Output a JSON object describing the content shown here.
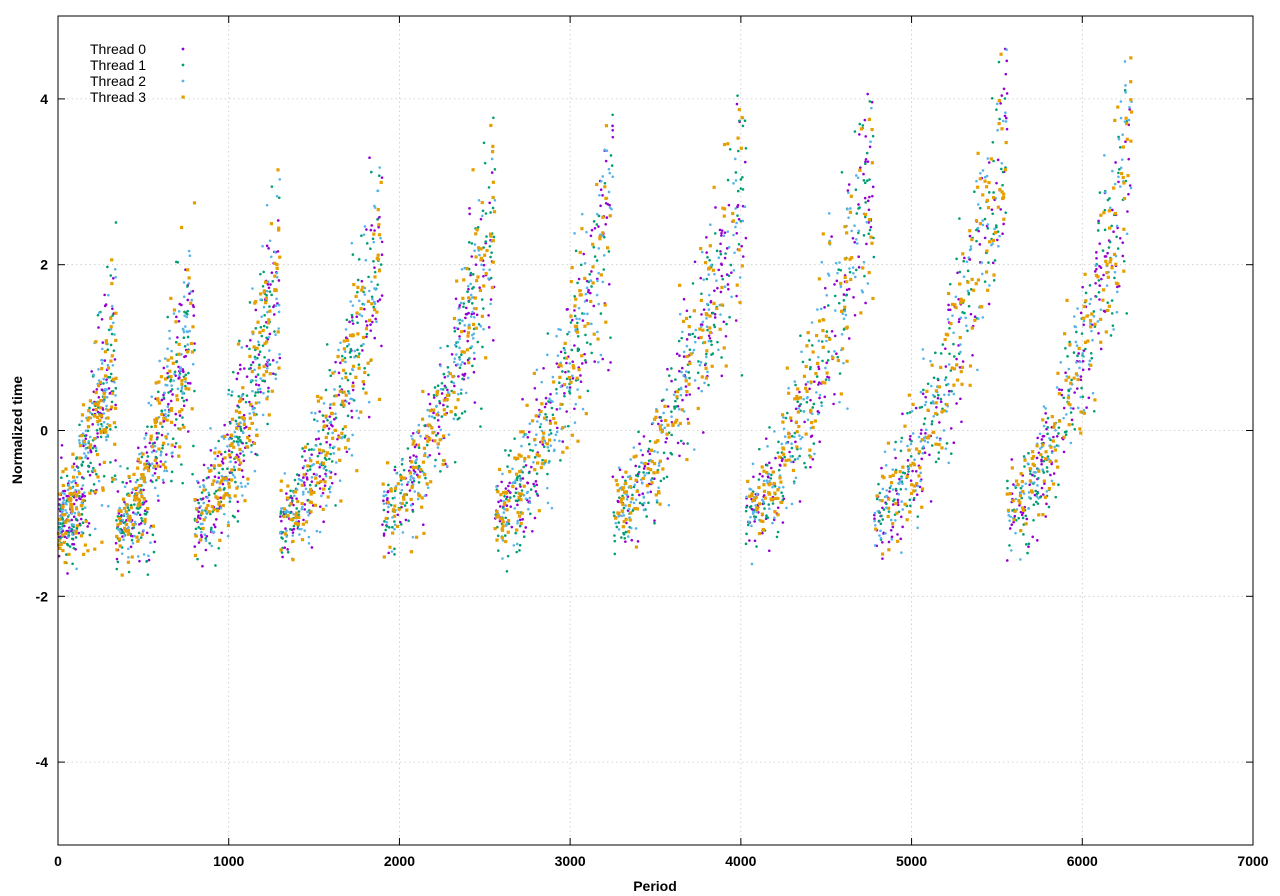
{
  "chart_data": {
    "type": "scatter",
    "title": "",
    "xlabel": "Period",
    "ylabel": "Normalized time",
    "xlim": [
      0,
      7000
    ],
    "ylim": [
      -5,
      5
    ],
    "x_ticks": [
      0,
      1000,
      2000,
      3000,
      4000,
      5000,
      6000,
      7000
    ],
    "y_ticks": [
      -4,
      -2,
      0,
      2,
      4
    ],
    "grid": true,
    "legend_position": "top-left",
    "series": [
      {
        "name": "Thread 0",
        "color": "#9400d3",
        "marker": "dot",
        "seed": 11
      },
      {
        "name": "Thread 1",
        "color": "#009e73",
        "marker": "dot",
        "seed": 23
      },
      {
        "name": "Thread 2",
        "color": "#56b4e9",
        "marker": "dot",
        "seed": 37
      },
      {
        "name": "Thread 3",
        "color": "#e69f00",
        "marker": "square",
        "seed": 53
      }
    ],
    "segments": [
      {
        "x_start": 0,
        "x_end": 340,
        "y_start": -1.1,
        "y_end": 1.0
      },
      {
        "x_start": 340,
        "x_end": 800,
        "y_start": -1.2,
        "y_end": 1.5
      },
      {
        "x_start": 800,
        "x_end": 1300,
        "y_start": -1.1,
        "y_end": 1.9
      },
      {
        "x_start": 1300,
        "x_end": 1900,
        "y_start": -1.1,
        "y_end": 2.2
      },
      {
        "x_start": 1900,
        "x_end": 2560,
        "y_start": -1.0,
        "y_end": 2.6
      },
      {
        "x_start": 2560,
        "x_end": 3250,
        "y_start": -1.0,
        "y_end": 2.8
      },
      {
        "x_start": 3250,
        "x_end": 4030,
        "y_start": -1.0,
        "y_end": 3.1
      },
      {
        "x_start": 4030,
        "x_end": 4780,
        "y_start": -1.0,
        "y_end": 3.3
      },
      {
        "x_start": 4780,
        "x_end": 5560,
        "y_start": -1.0,
        "y_end": 3.6
      },
      {
        "x_start": 5560,
        "x_end": 6290,
        "y_start": -1.0,
        "y_end": 3.4
      }
    ],
    "points_per_segment_per_series": 130,
    "max_period": 6290
  }
}
